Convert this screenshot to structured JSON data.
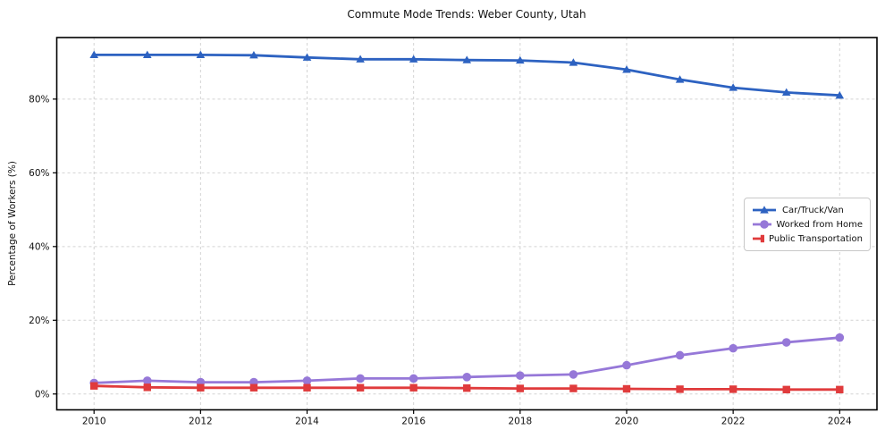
{
  "chart_data": {
    "type": "line",
    "title": "Commute Mode Trends: Weber County, Utah",
    "xlabel": "",
    "ylabel": "Percentage of Workers (%)",
    "x": [
      2010,
      2011,
      2012,
      2013,
      2014,
      2015,
      2016,
      2017,
      2018,
      2019,
      2020,
      2021,
      2022,
      2023,
      2024
    ],
    "series": [
      {
        "name": "Car/Truck/Van",
        "color": "#2d62c1",
        "marker": "triangle",
        "values": [
          92.0,
          92.0,
          92.0,
          91.9,
          91.3,
          90.8,
          90.8,
          90.6,
          90.5,
          89.9,
          88.0,
          85.3,
          83.1,
          81.8,
          81.0
        ]
      },
      {
        "name": "Worked from Home",
        "color": "#9678d8",
        "marker": "circle",
        "values": [
          3.0,
          3.6,
          3.2,
          3.2,
          3.6,
          4.2,
          4.2,
          4.6,
          5.0,
          5.3,
          7.8,
          10.5,
          12.4,
          14.0,
          15.3
        ]
      },
      {
        "name": "Public Transportation",
        "color": "#e03b3c",
        "marker": "square",
        "values": [
          2.2,
          1.8,
          1.7,
          1.7,
          1.7,
          1.7,
          1.7,
          1.6,
          1.5,
          1.5,
          1.4,
          1.3,
          1.3,
          1.2,
          1.2
        ]
      }
    ],
    "xticks": [
      2010,
      2012,
      2014,
      2016,
      2018,
      2020,
      2022,
      2024
    ],
    "xtick_labels": [
      "2010",
      "2012",
      "2014",
      "2016",
      "2018",
      "2020",
      "2022",
      "2024"
    ],
    "yticks": [
      0,
      20,
      40,
      60,
      80
    ],
    "ytick_labels": [
      "0%",
      "20%",
      "40%",
      "60%",
      "80%"
    ],
    "xlim": [
      2009.3,
      2024.7
    ],
    "ylim": [
      -4.3,
      96.7
    ],
    "grid": "dashed",
    "legend_position": "right-center",
    "colors": {
      "background": "#ffffff",
      "grid": "#d3d3d3",
      "axis": "#000000",
      "text": "#111111",
      "legend_border": "#c8c8c8"
    }
  }
}
